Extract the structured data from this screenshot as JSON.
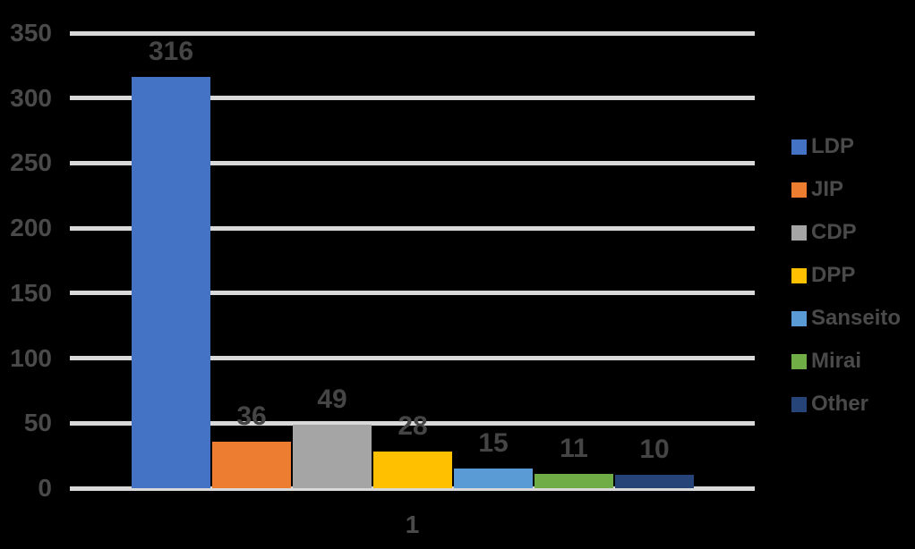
{
  "chart_data": {
    "type": "bar",
    "categories": [
      "1"
    ],
    "series": [
      {
        "name": "LDP",
        "values": [
          316
        ],
        "color": "#4472C4"
      },
      {
        "name": "JIP",
        "values": [
          36
        ],
        "color": "#ED7D31"
      },
      {
        "name": "CDP",
        "values": [
          49
        ],
        "color": "#A5A5A5"
      },
      {
        "name": "DPP",
        "values": [
          28
        ],
        "color": "#FFC000"
      },
      {
        "name": "Sanseito",
        "values": [
          15
        ],
        "color": "#5B9BD5"
      },
      {
        "name": "Mirai",
        "values": [
          11
        ],
        "color": "#70AD47"
      },
      {
        "name": "Other",
        "values": [
          10
        ],
        "color": "#264478"
      }
    ],
    "title": "",
    "xlabel": "",
    "ylabel": "",
    "ylim": [
      0,
      350
    ],
    "ytick_interval": 50,
    "ytick_labels": [
      "0",
      "50",
      "100",
      "150",
      "200",
      "250",
      "300",
      "350"
    ],
    "grid": true,
    "legend_position": "right",
    "data_labels_shown": true
  },
  "style": {
    "background": "#000000",
    "grid_color": "#D9D9D9",
    "text_color": "#4A4A4A",
    "data_label_color": "#454545"
  }
}
